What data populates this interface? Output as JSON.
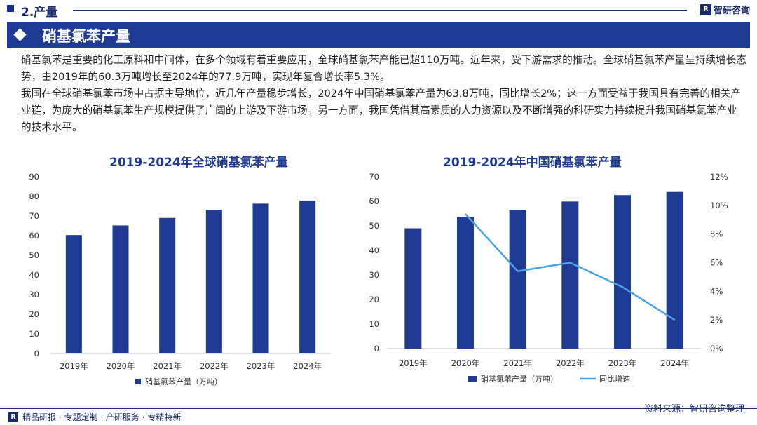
{
  "header": {
    "section_title": "2.产量",
    "brand_logo": "R",
    "brand_name": "智研咨询"
  },
  "banner": {
    "title": "硝基氯苯产量"
  },
  "intro": {
    "paragraphs": [
      "硝基氯苯是重要的化工原料和中间体，在多个领域有着重要应用，全球硝基氯苯产能已超110万吨。近年来，受下游需求的推动。全球硝基氯苯产量呈持续增长态势，由2019年的60.3万吨增长至2024年的77.9万吨，实现年复合增长率5.3%。",
      "我国在全球硝基氯苯市场中占据主导地位，近几年产量稳步增长，2024年中国硝基氯苯产量为63.8万吨，同比增长2%；这一方面受益于我国具有完善的相关产业链，为庞大的硝基氯苯生产规模提供了广阔的上游及下游市场。另一方面，我国凭借其高素质的人力资源以及不断增强的科研实力持续提升我国硝基氯苯产业的技术水平。"
    ]
  },
  "chart_data": [
    {
      "type": "bar",
      "title": "2019-2024年全球硝基氯苯产量",
      "categories": [
        "2019年",
        "2020年",
        "2021年",
        "2022年",
        "2023年",
        "2024年"
      ],
      "series": [
        {
          "name": "硝基氯苯产量（万吨）",
          "values": [
            60.3,
            65.2,
            69.0,
            73.1,
            76.3,
            77.9
          ]
        }
      ],
      "ylim": [
        0,
        90
      ],
      "yticks": [
        0,
        10,
        20,
        30,
        40,
        50,
        60,
        70,
        80,
        90
      ],
      "grid": false,
      "legend": "bottom",
      "bar_color": "#1f3a93"
    },
    {
      "type": "bar",
      "title": "2019-2024年中国硝基氯苯产量",
      "categories": [
        "2019年",
        "2020年",
        "2021年",
        "2022年",
        "2023年",
        "2024年"
      ],
      "series": [
        {
          "name": "硝基氯苯产量（万吨）",
          "type": "bar",
          "axis": "left",
          "values": [
            49.0,
            53.6,
            56.5,
            59.9,
            62.5,
            63.8
          ]
        },
        {
          "name": "同比增速",
          "type": "line",
          "axis": "right",
          "values": [
            null,
            9.4,
            5.4,
            6.0,
            4.3,
            2.0
          ]
        }
      ],
      "ylim": [
        0,
        70
      ],
      "yticks": [
        0,
        10,
        20,
        30,
        40,
        50,
        60,
        70
      ],
      "y2lim": [
        0,
        12
      ],
      "y2ticks": [
        "0%",
        "2%",
        "4%",
        "6%",
        "8%",
        "10%",
        "12%"
      ],
      "grid": false,
      "legend": "bottom",
      "bar_color": "#1f3a93",
      "line_color": "#4aa3e6"
    }
  ],
  "footer": {
    "logo": "R",
    "links": "精品研报 · 专题定制 · 产研服务 · 专精特新",
    "source": "资料来源：智研咨询整理"
  }
}
